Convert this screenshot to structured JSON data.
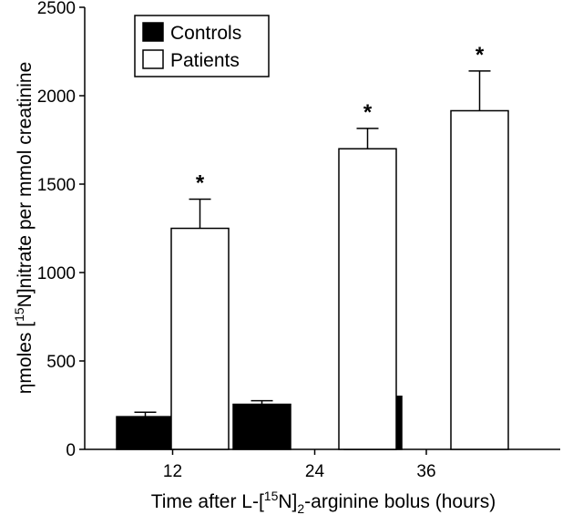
{
  "chart_data": {
    "type": "bar",
    "categories": [
      "12",
      "24",
      "36"
    ],
    "series": [
      {
        "name": "Controls",
        "values": [
          185,
          255,
          300
        ],
        "errors": [
          25,
          20,
          20
        ],
        "color": "#000000"
      },
      {
        "name": "Patients",
        "values": [
          1250,
          1700,
          1915
        ],
        "errors": [
          165,
          115,
          225
        ],
        "color": "#ffffff"
      }
    ],
    "annotations": [
      "*",
      "*",
      "*"
    ],
    "y_ticks": [
      0,
      500,
      1000,
      1500,
      2000,
      2500
    ],
    "ylim": [
      0,
      2500
    ],
    "xlabel": {
      "prefix": "Time after L-[",
      "sup": "15",
      "middle": "N]",
      "sub": "2",
      "suffix": "-arginine bolus (hours)"
    },
    "ylabel": {
      "prefix": "ηmoles [",
      "sup": "15",
      "suffix": "N]nitrate per mmol creatinine"
    },
    "legend_position": "top-left",
    "grid": false
  }
}
